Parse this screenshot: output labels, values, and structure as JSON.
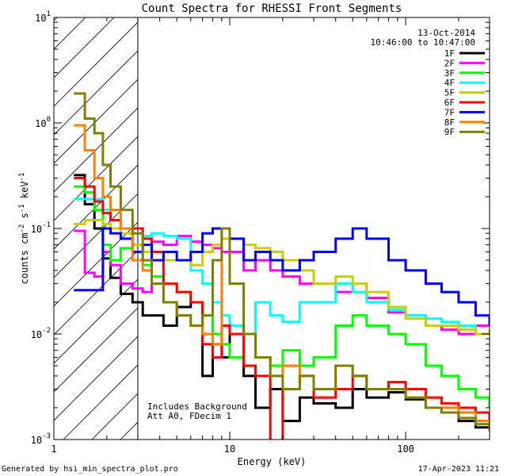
{
  "chart_data": {
    "type": "line",
    "title": "Count Spectra for RHESSI Front Segments",
    "xlabel": "Energy (keV)",
    "ylabel_base": "counts cm",
    "ylabel_exp1": "-2",
    "ylabel_mid": " s",
    "ylabel_exp2": "-1",
    "ylabel_end": " keV",
    "ylabel_exp3": "-1",
    "xscale": "log",
    "yscale": "log",
    "xlim": [
      1,
      300
    ],
    "ylim": [
      0.001,
      10
    ],
    "x_ticks": [
      {
        "value": 1,
        "label": "1"
      },
      {
        "value": 10,
        "label": "10"
      },
      {
        "value": 100,
        "label": "100"
      }
    ],
    "y_ticks": [
      {
        "value": 0.001,
        "base": "10",
        "exp": "-3"
      },
      {
        "value": 0.01,
        "base": "10",
        "exp": "-2"
      },
      {
        "value": 0.1,
        "base": "10",
        "exp": "-1"
      },
      {
        "value": 1,
        "base": "10",
        "exp": "0"
      },
      {
        "value": 10,
        "base": "10",
        "exp": "1"
      }
    ],
    "hatch_region": {
      "x_from": 1,
      "x_to": 3
    },
    "date": "13-Oct-2014",
    "time_range": "10:46:00 to 10:47:00",
    "legend_position": "top-right",
    "annotation_line1": "Includes Background",
    "annotation_line2": "Att A0, FDecim 1",
    "footer_left": "Generated by hsi_min_spectra_plot.pro",
    "footer_right": "17-Apr-2023 11:21",
    "series": [
      {
        "name": "1F",
        "color": "#000000",
        "x": [
          1.3,
          1.5,
          1.7,
          1.9,
          2.1,
          2.4,
          2.8,
          3.2,
          3.6,
          4.2,
          5,
          6,
          7,
          8,
          9,
          10,
          12,
          14,
          17,
          20,
          25,
          30,
          40,
          50,
          60,
          80,
          100,
          130,
          160,
          200,
          250,
          300
        ],
        "y": [
          0.32,
          0.17,
          0.1,
          0.052,
          0.034,
          0.024,
          0.02,
          0.015,
          0.015,
          0.012,
          0.018,
          0.02,
          0.004,
          0.008,
          0.006,
          0.012,
          0.004,
          0.002,
          0.003,
          0.0015,
          0.0025,
          0.0022,
          0.002,
          0.003,
          0.0025,
          0.0028,
          0.0024,
          0.002,
          0.0018,
          0.0015,
          0.0013,
          0.0013
        ]
      },
      {
        "name": "2F",
        "color": "#ff00ff",
        "x": [
          1.3,
          1.5,
          1.7,
          1.9,
          2.1,
          2.4,
          2.8,
          3.2,
          3.6,
          4.2,
          5,
          6,
          7,
          8,
          9,
          10,
          12,
          14,
          17,
          20,
          25,
          30,
          40,
          50,
          60,
          80,
          100,
          130,
          160,
          200,
          250,
          300
        ],
        "y": [
          0.095,
          0.038,
          0.035,
          0.06,
          0.045,
          0.03,
          0.027,
          0.025,
          0.075,
          0.07,
          0.085,
          0.075,
          0.07,
          0.065,
          0.06,
          0.06,
          0.04,
          0.05,
          0.04,
          0.035,
          0.03,
          0.03,
          0.025,
          0.03,
          0.022,
          0.016,
          0.015,
          0.012,
          0.011,
          0.01,
          0.012,
          0.012
        ]
      },
      {
        "name": "3F",
        "color": "#00ff00",
        "x": [
          1.3,
          1.5,
          1.7,
          1.9,
          2.1,
          2.4,
          2.8,
          3.2,
          3.6,
          4.2,
          5,
          6,
          7,
          8,
          9,
          10,
          12,
          14,
          17,
          20,
          25,
          30,
          40,
          50,
          60,
          80,
          100,
          130,
          160,
          200,
          250,
          300
        ],
        "y": [
          0.25,
          0.22,
          0.15,
          0.07,
          0.05,
          0.065,
          0.07,
          0.045,
          0.035,
          0.03,
          0.025,
          0.02,
          0.015,
          0.01,
          0.008,
          0.006,
          0.01,
          0.006,
          0.005,
          0.007,
          0.005,
          0.006,
          0.012,
          0.015,
          0.012,
          0.01,
          0.008,
          0.005,
          0.004,
          0.003,
          0.0025,
          0.002
        ]
      },
      {
        "name": "4F",
        "color": "#00ffff",
        "x": [
          1.3,
          1.5,
          1.7,
          1.9,
          2.1,
          2.4,
          2.8,
          3.2,
          3.6,
          4.2,
          5,
          6,
          7,
          8,
          9,
          10,
          12,
          14,
          17,
          20,
          25,
          30,
          40,
          50,
          60,
          80,
          100,
          130,
          160,
          200,
          250,
          300
        ],
        "y": [
          0.19,
          0.19,
          0.19,
          0.15,
          0.12,
          0.1,
          0.09,
          0.085,
          0.09,
          0.085,
          0.08,
          0.04,
          0.03,
          0.02,
          0.015,
          0.012,
          0.01,
          0.02,
          0.015,
          0.013,
          0.02,
          0.02,
          0.03,
          0.025,
          0.02,
          0.017,
          0.015,
          0.014,
          0.013,
          0.012,
          0.01,
          0.01
        ]
      },
      {
        "name": "5F",
        "color": "#cccc00",
        "x": [
          1.3,
          1.5,
          1.7,
          1.9,
          2.1,
          2.4,
          2.8,
          3.2,
          3.6,
          4.2,
          5,
          6,
          7,
          8,
          9,
          10,
          12,
          14,
          17,
          20,
          25,
          30,
          40,
          50,
          60,
          80,
          100,
          130,
          160,
          200,
          250,
          300
        ],
        "y": [
          0.11,
          0.12,
          0.12,
          0.11,
          0.1,
          0.09,
          0.07,
          0.06,
          0.06,
          0.05,
          0.05,
          0.045,
          0.06,
          0.07,
          0.08,
          0.08,
          0.07,
          0.065,
          0.06,
          0.05,
          0.04,
          0.03,
          0.035,
          0.03,
          0.025,
          0.018,
          0.014,
          0.012,
          0.012,
          0.011,
          0.01,
          0.011
        ]
      },
      {
        "name": "6F",
        "color": "#ff0000",
        "x": [
          1.3,
          1.5,
          1.7,
          1.9,
          2.1,
          2.4,
          2.8,
          3.2,
          3.6,
          4.2,
          5,
          6,
          7,
          8,
          9,
          10,
          12,
          14,
          17,
          20,
          25,
          30,
          40,
          50,
          60,
          80,
          100,
          130,
          160,
          200,
          250,
          300
        ],
        "y": [
          0.3,
          0.25,
          0.18,
          0.14,
          0.12,
          0.1,
          0.1,
          0.08,
          0.06,
          0.03,
          0.025,
          0.02,
          0.008,
          0.006,
          0.012,
          0.01,
          0.005,
          0.004,
          0.0008,
          0.003,
          0.004,
          0.0025,
          0.003,
          0.004,
          0.003,
          0.0035,
          0.003,
          0.0025,
          0.0022,
          0.002,
          0.0018,
          0.0015
        ]
      },
      {
        "name": "7F",
        "color": "#0000ff",
        "x": [
          1.3,
          1.5,
          1.7,
          1.9,
          2.1,
          2.4,
          2.8,
          3.2,
          3.6,
          4.2,
          5,
          6,
          7,
          8,
          9,
          10,
          12,
          14,
          17,
          20,
          25,
          30,
          40,
          50,
          60,
          80,
          100,
          130,
          160,
          200,
          250,
          300
        ],
        "y": [
          0.026,
          0.026,
          0.026,
          0.1,
          0.09,
          0.08,
          0.06,
          0.07,
          0.05,
          0.06,
          0.05,
          0.06,
          0.09,
          0.1,
          0.1,
          0.08,
          0.05,
          0.06,
          0.05,
          0.04,
          0.05,
          0.06,
          0.08,
          0.1,
          0.08,
          0.05,
          0.04,
          0.03,
          0.025,
          0.02,
          0.015,
          0.012
        ]
      },
      {
        "name": "8F",
        "color": "#ff8000",
        "x": [
          1.3,
          1.5,
          1.7,
          1.9,
          2.1,
          2.4,
          2.8,
          3.2,
          3.6,
          4.2,
          5,
          6,
          7,
          8,
          9,
          10,
          12,
          14,
          17,
          20,
          25,
          30,
          40,
          50,
          60,
          80,
          100,
          130,
          160,
          200,
          250,
          300
        ],
        "y": [
          0.95,
          0.55,
          0.3,
          0.2,
          0.15,
          0.1,
          0.05,
          0.04,
          0.03,
          0.02,
          0.015,
          0.012,
          0.01,
          0.008,
          0.1,
          0.03,
          0.01,
          0.006,
          0.004,
          0.005,
          0.004,
          0.003,
          0.005,
          0.004,
          0.003,
          0.003,
          0.0025,
          0.002,
          0.002,
          0.0018,
          0.0015,
          0.0013
        ]
      },
      {
        "name": "9F",
        "color": "#808000",
        "x": [
          1.3,
          1.5,
          1.7,
          1.9,
          2.1,
          2.4,
          2.8,
          3.2,
          3.6,
          4.2,
          5,
          6,
          7,
          8,
          9,
          10,
          12,
          14,
          17,
          20,
          25,
          30,
          40,
          50,
          60,
          80,
          100,
          130,
          160,
          200,
          250,
          300
        ],
        "y": [
          1.9,
          1.1,
          0.8,
          0.4,
          0.25,
          0.15,
          0.09,
          0.05,
          0.03,
          0.02,
          0.015,
          0.012,
          0.015,
          0.05,
          0.1,
          0.03,
          0.01,
          0.006,
          0.004,
          0.003,
          0.004,
          0.003,
          0.005,
          0.004,
          0.003,
          0.003,
          0.0025,
          0.002,
          0.0018,
          0.0016,
          0.0014,
          0.0012
        ]
      }
    ]
  }
}
